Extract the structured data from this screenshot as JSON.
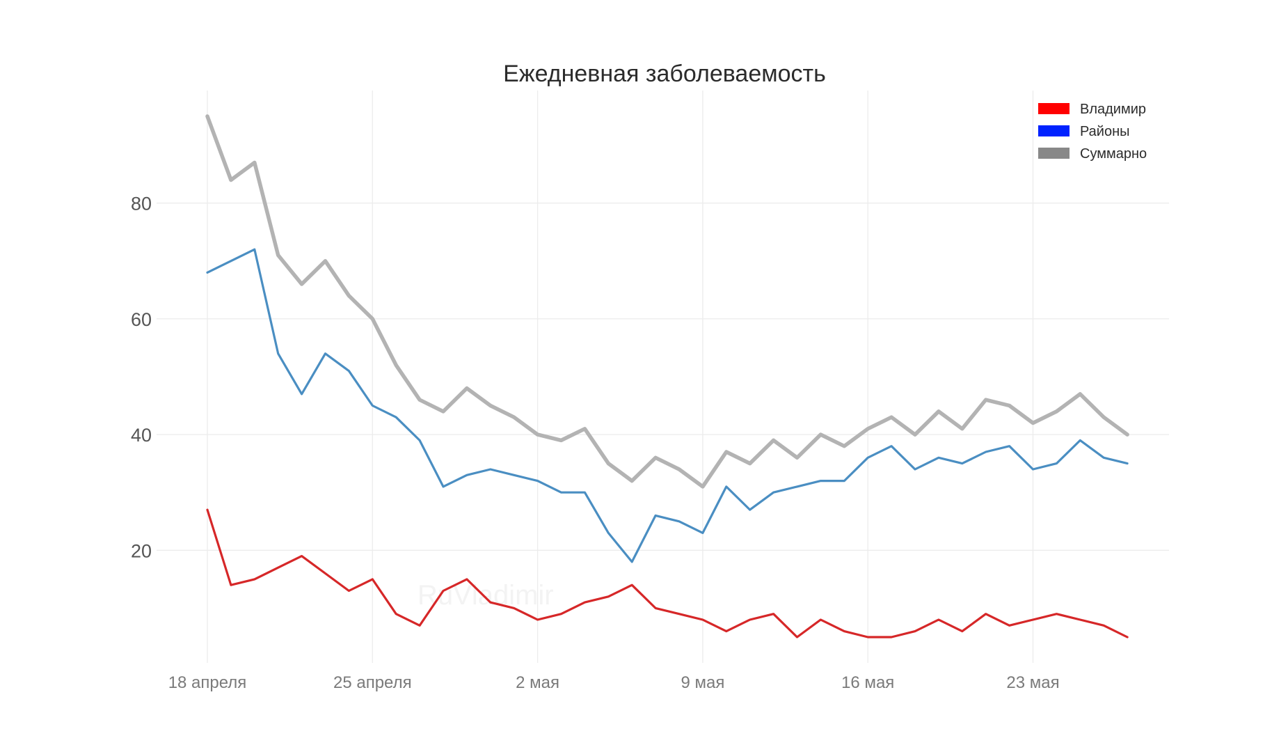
{
  "chart_data": {
    "type": "line",
    "title": "Ежедневная заболеваемость",
    "xlabel": "",
    "ylabel": "",
    "watermark": "RuVladimir",
    "x": [
      "18 апреля",
      "19 апреля",
      "20 апреля",
      "21 апреля",
      "22 апреля",
      "23 апреля",
      "24 апреля",
      "25 апреля",
      "26 апреля",
      "27 апреля",
      "28 апреля",
      "29 апреля",
      "30 апреля",
      "1 мая",
      "2 мая",
      "3 мая",
      "4 мая",
      "5 мая",
      "6 мая",
      "7 мая",
      "8 мая",
      "9 мая",
      "10 мая",
      "11 мая",
      "12 мая",
      "13 мая",
      "14 мая",
      "15 мая",
      "16 мая",
      "17 мая",
      "18 мая",
      "19 мая",
      "20 мая",
      "21 мая",
      "22 мая",
      "23 мая",
      "24 мая",
      "25 мая",
      "26 мая",
      "27 мая"
    ],
    "xtick_labels": [
      "18 апреля",
      "25 апреля",
      "2 мая",
      "9 мая",
      "16 мая",
      "23 мая"
    ],
    "xtick_index": [
      0,
      7,
      14,
      21,
      28,
      35
    ],
    "ylim": [
      0,
      100
    ],
    "yticks": [
      20,
      40,
      60,
      80
    ],
    "grid": true,
    "legend_position": "top-right",
    "series": [
      {
        "name": "Суммарно",
        "line_color": "#b3b3b3",
        "legend_color": "#888888",
        "values": [
          95,
          84,
          87,
          71,
          66,
          70,
          64,
          60,
          52,
          46,
          44,
          48,
          45,
          43,
          40,
          39,
          41,
          35,
          32,
          36,
          34,
          31,
          37,
          35,
          39,
          36,
          40,
          38,
          41,
          43,
          40,
          44,
          41,
          46,
          45,
          42,
          44,
          47,
          43,
          40
        ]
      },
      {
        "name": "Районы",
        "line_color": "#4a8ec2",
        "legend_color": "#0022ff",
        "values": [
          68,
          70,
          72,
          54,
          47,
          54,
          51,
          45,
          43,
          39,
          31,
          33,
          34,
          33,
          32,
          30,
          30,
          23,
          18,
          26,
          25,
          23,
          31,
          27,
          30,
          31,
          32,
          32,
          36,
          38,
          34,
          36,
          35,
          37,
          38,
          34,
          35,
          39,
          36,
          35
        ]
      },
      {
        "name": "Владимир",
        "line_color": "#d62728",
        "legend_color": "#ff0000",
        "values": [
          27,
          14,
          15,
          17,
          19,
          16,
          13,
          15,
          9,
          7,
          13,
          15,
          11,
          10,
          8,
          9,
          11,
          12,
          14,
          10,
          9,
          8,
          6,
          8,
          9,
          5,
          8,
          6,
          5,
          5,
          6,
          8,
          6,
          9,
          7,
          8,
          9,
          8,
          7,
          5
        ]
      }
    ],
    "legend_order": [
      "Владимир",
      "Районы",
      "Суммарно"
    ]
  }
}
